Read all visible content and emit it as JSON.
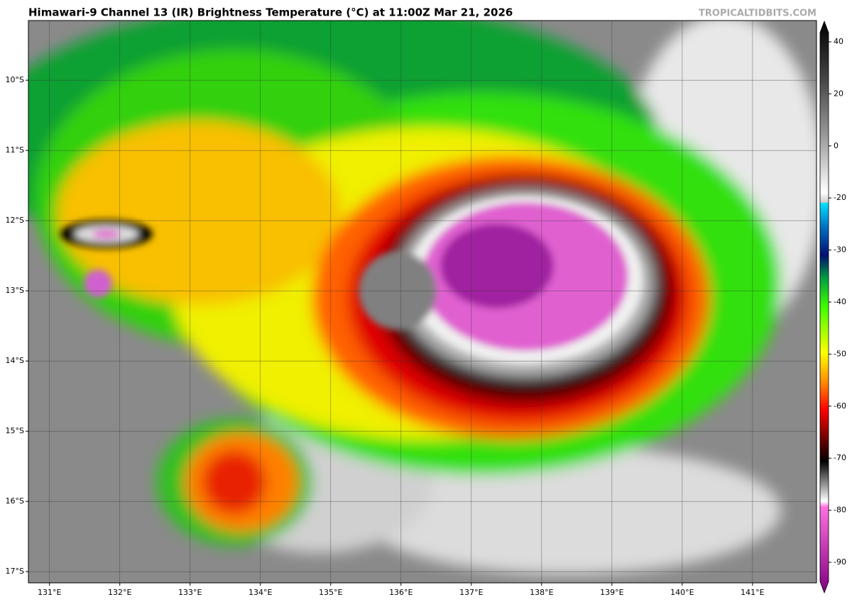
{
  "title": "Himawari-9 Channel 13 (IR) Brightness Temperature (°C) at 11:00Z Mar 21, 2026",
  "watermark": "TROPICALTIDBITS.COM",
  "map": {
    "lonlim": [
      130.7,
      141.91
    ],
    "latlim": [
      -17.16,
      -9.15
    ],
    "lon_ticks": [
      {
        "value": 131,
        "label": "131°E"
      },
      {
        "value": 132,
        "label": "132°E"
      },
      {
        "value": 133,
        "label": "133°E"
      },
      {
        "value": 134,
        "label": "134°E"
      },
      {
        "value": 135,
        "label": "135°E"
      },
      {
        "value": 136,
        "label": "136°E"
      },
      {
        "value": 137,
        "label": "137°E"
      },
      {
        "value": 138,
        "label": "138°E"
      },
      {
        "value": 139,
        "label": "139°E"
      },
      {
        "value": 140,
        "label": "140°E"
      },
      {
        "value": 141,
        "label": "141°E"
      }
    ],
    "lat_ticks": [
      {
        "value": -10,
        "label": "10°S"
      },
      {
        "value": -11,
        "label": "11°S"
      },
      {
        "value": -12,
        "label": "12°S"
      },
      {
        "value": -13,
        "label": "13°S"
      },
      {
        "value": -14,
        "label": "14°S"
      },
      {
        "value": -15,
        "label": "15°S"
      },
      {
        "value": -16,
        "label": "16°S"
      },
      {
        "value": -17,
        "label": "17°S"
      }
    ]
  },
  "colorbar": {
    "ticks": [
      40,
      20,
      0,
      -20,
      -30,
      -40,
      -50,
      -60,
      -70,
      -80,
      -90
    ]
  }
}
